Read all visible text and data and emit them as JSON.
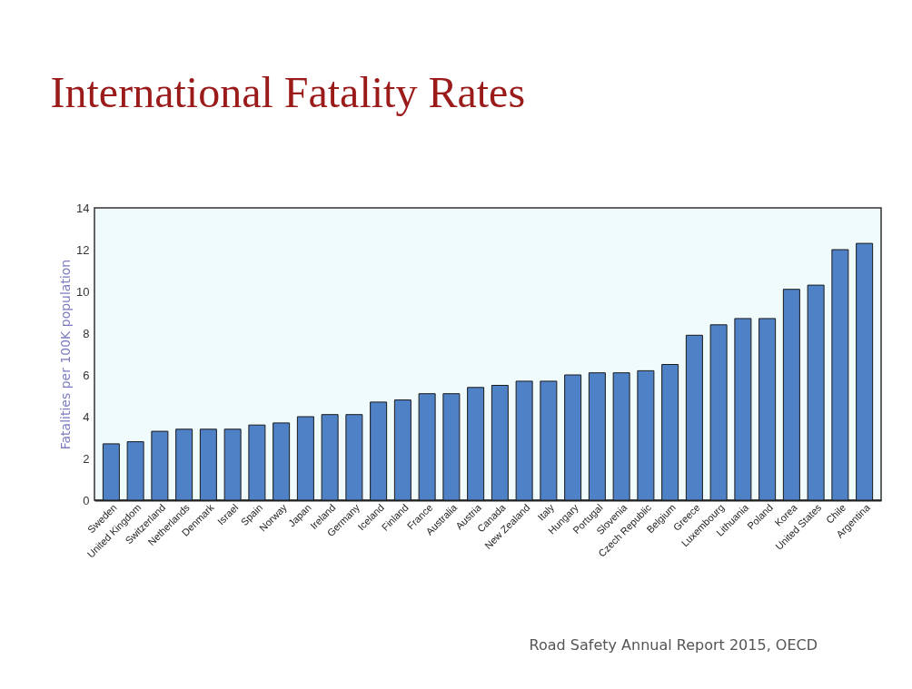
{
  "chart_data": {
    "type": "bar",
    "title": "International Fatality Rates",
    "ylabel": "Fatalities per 100K population",
    "categories": [
      "Sweden",
      "United Kingdom",
      "Switzerland",
      "Netherlands",
      "Denmark",
      "Israel",
      "Spain",
      "Norway",
      "Japan",
      "Ireland",
      "Germany",
      "Iceland",
      "Finland",
      "France",
      "Australia",
      "Austria",
      "Canada",
      "New Zealand",
      "Italy",
      "Hungary",
      "Portugal",
      "Slovenia",
      "Czech Republic",
      "Belgium",
      "Greece",
      "Luxembourg",
      "Lithuania",
      "Poland",
      "Korea",
      "United States",
      "Chile",
      "Argentina"
    ],
    "values": [
      2.7,
      2.8,
      3.3,
      3.4,
      3.4,
      3.4,
      3.6,
      3.7,
      4.0,
      4.1,
      4.1,
      4.7,
      4.8,
      5.1,
      5.1,
      5.4,
      5.5,
      5.7,
      5.7,
      6.0,
      6.1,
      6.1,
      6.2,
      6.5,
      7.9,
      8.4,
      8.7,
      8.7,
      10.1,
      10.3,
      12.0,
      12.3
    ],
    "color": "#4f81c7",
    "ylim": [
      0,
      14
    ],
    "yticks": [
      0,
      2,
      4,
      6,
      8,
      10,
      12,
      14
    ],
    "grid": false,
    "annotations": [
      "Road Safety Annual Report 2015, OECD"
    ]
  }
}
